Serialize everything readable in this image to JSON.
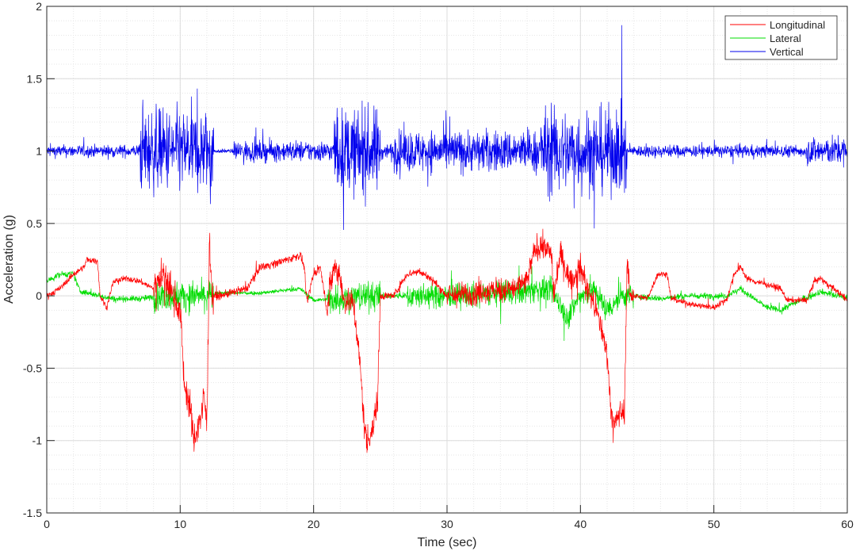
{
  "chart_data": {
    "type": "line",
    "title": "",
    "xlabel": "Time (sec)",
    "ylabel": "Acceleration (g)",
    "xlim": [
      0,
      60
    ],
    "ylim": [
      -1.5,
      2
    ],
    "xticks": [
      0,
      10,
      20,
      30,
      40,
      50,
      60
    ],
    "xtick_labels": [
      "0",
      "10",
      "20",
      "30",
      "40",
      "50",
      "60"
    ],
    "yticks": [
      -1.5,
      -1,
      -0.5,
      0,
      0.5,
      1,
      1.5,
      2
    ],
    "ytick_labels": [
      "-1.5",
      "-1",
      "-0.5",
      "0",
      "0.5",
      "1",
      "1.5",
      "2"
    ],
    "grid": "major and minor",
    "legend_position": "top-right",
    "series": [
      {
        "name": "Longitudinal",
        "color": "#ff0000",
        "x": [
          0,
          1,
          2,
          2.8,
          3,
          3.8,
          4,
          4.5,
          5,
          6,
          7,
          8,
          8.5,
          9,
          9.5,
          10,
          10.3,
          10.8,
          11,
          11.5,
          11.8,
          12,
          12.2,
          12.4,
          13,
          15,
          16,
          17,
          18,
          19,
          19.3,
          19.5,
          20,
          20.5,
          21,
          21.5,
          22,
          22.2,
          23,
          23.5,
          23.8,
          24,
          24.5,
          24.8,
          25,
          26,
          27,
          28,
          29,
          30,
          35,
          36,
          36.5,
          37,
          37.8,
          38,
          38.5,
          39,
          39.5,
          40,
          40.5,
          41,
          41.5,
          42,
          42.3,
          42.5,
          43,
          43.3,
          43.5,
          43.7,
          44,
          45,
          45.8,
          46.5,
          46.8,
          48,
          49,
          50,
          51,
          51.5,
          52,
          52.5,
          53,
          54,
          55,
          55.5,
          56,
          57,
          57.5,
          58,
          58.5,
          59,
          60
        ],
        "y": [
          0,
          0.05,
          0.15,
          0.2,
          0.25,
          0.24,
          0,
          -0.08,
          0.1,
          0.12,
          0.1,
          0.05,
          0.15,
          0.1,
          0,
          -0.1,
          -0.6,
          -0.8,
          -1.0,
          -0.85,
          -0.7,
          -0.9,
          0.4,
          0,
          0,
          0.05,
          0.2,
          0.22,
          0.25,
          0.28,
          0.2,
          -0.05,
          0.15,
          0.2,
          -0.1,
          0.2,
          0.15,
          -0.02,
          -0.05,
          -0.5,
          -0.9,
          -1.0,
          -0.9,
          -0.7,
          0,
          0,
          0.15,
          0.17,
          0.1,
          0,
          0.05,
          0.1,
          0.3,
          0.35,
          0.3,
          0,
          0.3,
          0.15,
          0.1,
          0.2,
          0.05,
          -0.05,
          -0.2,
          -0.4,
          -0.8,
          -0.9,
          -0.8,
          -0.8,
          0.25,
          0,
          0,
          -0.02,
          0.15,
          0.15,
          -0.02,
          -0.05,
          -0.07,
          -0.08,
          -0.02,
          0.15,
          0.2,
          0.12,
          0.1,
          0.08,
          0.05,
          -0.03,
          -0.03,
          -0.03,
          0.1,
          0.12,
          0.08,
          0.05,
          -0.03
        ],
        "noise": [
          [
            0,
            8,
            0.015
          ],
          [
            8,
            12.5,
            0.08
          ],
          [
            12.5,
            21,
            0.02
          ],
          [
            21,
            25,
            0.07
          ],
          [
            25,
            30,
            0.02
          ],
          [
            30,
            44,
            0.06
          ],
          [
            44,
            60,
            0.015
          ]
        ]
      },
      {
        "name": "Lateral",
        "color": "#00dd00",
        "x": [
          0,
          1,
          2,
          2.5,
          4,
          5,
          7,
          9,
          12,
          13,
          16,
          19,
          20,
          22,
          24,
          26,
          30,
          35,
          37,
          38,
          39,
          40,
          41,
          42,
          43,
          44,
          46,
          48,
          51,
          52,
          53,
          54,
          55,
          56,
          58,
          60
        ],
        "y": [
          0.1,
          0.15,
          0.15,
          0.03,
          0,
          -0.02,
          -0.02,
          0,
          0,
          0.02,
          0.02,
          0.05,
          -0.03,
          -0.02,
          0,
          0,
          0,
          0.02,
          0.05,
          0.02,
          -0.15,
          0,
          0.05,
          -0.1,
          0,
          0,
          -0.02,
          0,
          0,
          0.05,
          -0.02,
          -0.08,
          -0.1,
          -0.05,
          0.03,
          -0.02
        ],
        "noise": [
          [
            0,
            8,
            0.015
          ],
          [
            8,
            12.5,
            0.07
          ],
          [
            12.5,
            21,
            0.01
          ],
          [
            21,
            25,
            0.07
          ],
          [
            25,
            27,
            0.015
          ],
          [
            27,
            44,
            0.06
          ],
          [
            44,
            60,
            0.015
          ]
        ]
      },
      {
        "name": "Vertical",
        "color": "#0000ee",
        "x": [
          0,
          60
        ],
        "y": [
          1,
          1
        ],
        "noise": [
          [
            0,
            7,
            0.03
          ],
          [
            7,
            12.5,
            0.2
          ],
          [
            12.5,
            14,
            0.01
          ],
          [
            14,
            21.5,
            0.05
          ],
          [
            21.5,
            25,
            0.2
          ],
          [
            25,
            26,
            0.04
          ],
          [
            26,
            37,
            0.1
          ],
          [
            37,
            43.5,
            0.2
          ],
          [
            43.5,
            44,
            0.02
          ],
          [
            44,
            57,
            0.03
          ],
          [
            57,
            60,
            0.07
          ]
        ]
      }
    ]
  }
}
